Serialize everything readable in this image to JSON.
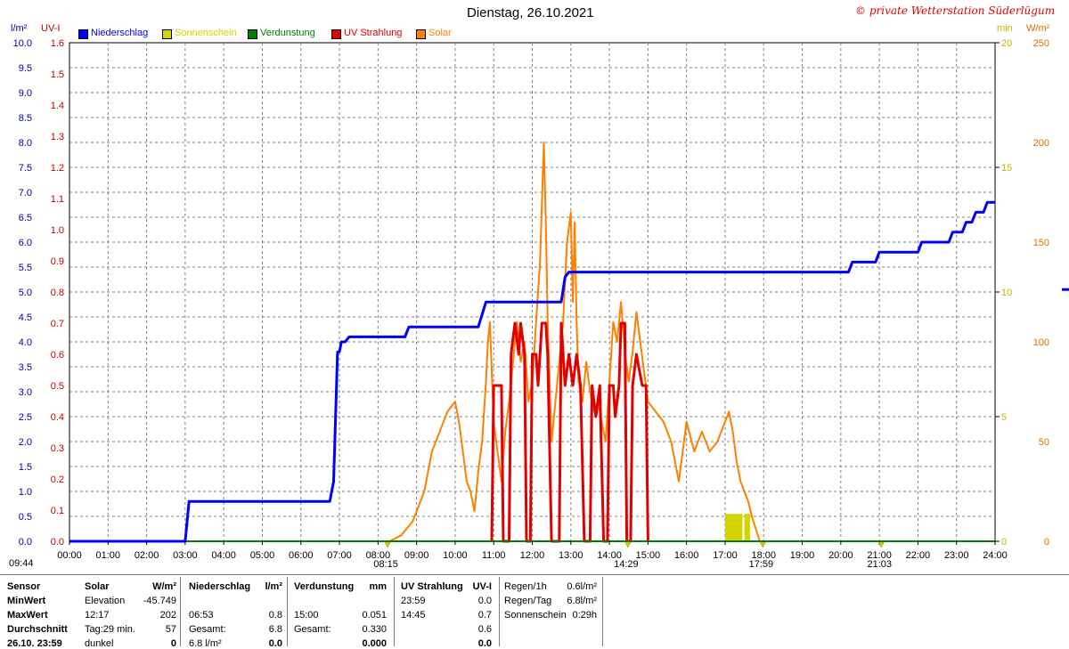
{
  "title": "Dienstag, 26.10.2021",
  "copyright": "© private Wetterstation Süderlügum",
  "colors": {
    "niederschlag": "#0000ff",
    "sonnenschein": "#d4d400",
    "verdunstung": "#007f00",
    "uv": "#e00000",
    "solar": "#ff8000",
    "grid": "#808080"
  },
  "chart_data": {
    "type": "line",
    "axes": {
      "left1": {
        "unit": "l/m²",
        "min": 0,
        "max": 10,
        "ticks": [
          "0.0",
          "0.5",
          "1.0",
          "1.5",
          "2.0",
          "2.5",
          "3.0",
          "3.5",
          "4.0",
          "4.5",
          "5.0",
          "5.5",
          "6.0",
          "6.5",
          "7.0",
          "7.5",
          "8.0",
          "8.5",
          "9.0",
          "9.5",
          "10.0"
        ]
      },
      "left2": {
        "unit": "UV-I",
        "min": 0,
        "max": 1.6,
        "ticks": [
          "0.0",
          "0.1",
          "0.2",
          "0.3",
          "0.4",
          "0.5",
          "0.6",
          "0.7",
          "0.8",
          "0.9",
          "1.0",
          "1.1",
          "1.2",
          "1.3",
          "1.4",
          "1.5",
          "1.6"
        ]
      },
      "right1": {
        "unit": "min",
        "min": 0,
        "max": 20,
        "ticks": [
          "0",
          "5",
          "10",
          "15",
          "20"
        ]
      },
      "right2": {
        "unit": "W/m²",
        "min": 0,
        "max": 250,
        "ticks": [
          "0",
          "50",
          "100",
          "150",
          "200",
          "250"
        ]
      },
      "x": {
        "min": 0,
        "max": 24,
        "ticks": [
          "00:00",
          "01:00",
          "02:00",
          "03:00",
          "04:00",
          "05:00",
          "06:00",
          "07:00",
          "08:00",
          "09:00",
          "10:00",
          "11:00",
          "12:00",
          "13:00",
          "14:00",
          "15:00",
          "16:00",
          "17:00",
          "18:00",
          "19:00",
          "20:00",
          "21:00",
          "22:00",
          "23:00",
          "24:00"
        ]
      }
    },
    "grid": true,
    "legend": [
      "Niederschlag",
      "Sonnenschein",
      "Verdunstung",
      "UV Strahlung",
      "Solar"
    ],
    "series": [
      {
        "name": "Niederschlag",
        "axis": "left1",
        "points": [
          [
            0,
            0
          ],
          [
            3.0,
            0
          ],
          [
            3.1,
            0.8
          ],
          [
            6.75,
            0.8
          ],
          [
            6.85,
            1.2
          ],
          [
            6.95,
            3.8
          ],
          [
            7.0,
            3.8
          ],
          [
            7.05,
            4.0
          ],
          [
            7.15,
            4.0
          ],
          [
            7.25,
            4.1
          ],
          [
            8.7,
            4.1
          ],
          [
            8.8,
            4.3
          ],
          [
            10.6,
            4.3
          ],
          [
            10.8,
            4.8
          ],
          [
            12.75,
            4.8
          ],
          [
            12.85,
            5.3
          ],
          [
            12.95,
            5.4
          ],
          [
            20.2,
            5.4
          ],
          [
            20.3,
            5.6
          ],
          [
            20.9,
            5.6
          ],
          [
            21.0,
            5.8
          ],
          [
            22.0,
            5.8
          ],
          [
            22.1,
            6.0
          ],
          [
            22.8,
            6.0
          ],
          [
            22.9,
            6.2
          ],
          [
            23.15,
            6.2
          ],
          [
            23.25,
            6.4
          ],
          [
            23.4,
            6.4
          ],
          [
            23.5,
            6.6
          ],
          [
            23.7,
            6.6
          ],
          [
            23.8,
            6.8
          ],
          [
            24.0,
            6.8
          ]
        ]
      },
      {
        "name": "Verdunstung",
        "axis": "left1",
        "points": [
          [
            0,
            0
          ],
          [
            24,
            0
          ]
        ]
      },
      {
        "name": "UV Strahlung",
        "axis": "left2",
        "points": [
          [
            10.95,
            0
          ],
          [
            11.0,
            0.5
          ],
          [
            11.2,
            0.5
          ],
          [
            11.25,
            0
          ],
          [
            11.4,
            0
          ],
          [
            11.45,
            0.6
          ],
          [
            11.55,
            0.7
          ],
          [
            11.65,
            0.6
          ],
          [
            11.7,
            0.7
          ],
          [
            11.8,
            0.6
          ],
          [
            11.85,
            0
          ],
          [
            11.95,
            0
          ],
          [
            12.0,
            0.6
          ],
          [
            12.1,
            0.6
          ],
          [
            12.15,
            0.5
          ],
          [
            12.2,
            0.6
          ],
          [
            12.25,
            0.7
          ],
          [
            12.35,
            0.7
          ],
          [
            12.4,
            0.6
          ],
          [
            12.5,
            0
          ],
          [
            12.7,
            0
          ],
          [
            12.75,
            0.7
          ],
          [
            12.85,
            0.5
          ],
          [
            12.95,
            0.6
          ],
          [
            13.05,
            0.5
          ],
          [
            13.15,
            0.6
          ],
          [
            13.25,
            0.5
          ],
          [
            13.35,
            0
          ],
          [
            13.5,
            0
          ],
          [
            13.55,
            0.5
          ],
          [
            13.65,
            0.4
          ],
          [
            13.75,
            0.5
          ],
          [
            13.85,
            0
          ],
          [
            13.95,
            0
          ],
          [
            14.0,
            0.5
          ],
          [
            14.1,
            0.5
          ],
          [
            14.15,
            0.4
          ],
          [
            14.25,
            0.5
          ],
          [
            14.3,
            0.7
          ],
          [
            14.4,
            0.7
          ],
          [
            14.45,
            0
          ],
          [
            14.55,
            0
          ],
          [
            14.6,
            0.5
          ],
          [
            14.7,
            0.6
          ],
          [
            14.85,
            0.5
          ],
          [
            14.95,
            0.5
          ],
          [
            15.0,
            0
          ]
        ]
      },
      {
        "name": "Solar",
        "axis": "right2",
        "points": [
          [
            8.3,
            0
          ],
          [
            8.6,
            3
          ],
          [
            8.9,
            10
          ],
          [
            9.2,
            25
          ],
          [
            9.4,
            45
          ],
          [
            9.6,
            55
          ],
          [
            9.8,
            65
          ],
          [
            10.0,
            70
          ],
          [
            10.1,
            60
          ],
          [
            10.2,
            45
          ],
          [
            10.3,
            30
          ],
          [
            10.4,
            25
          ],
          [
            10.5,
            15
          ],
          [
            10.6,
            35
          ],
          [
            10.7,
            50
          ],
          [
            10.8,
            80
          ],
          [
            10.85,
            100
          ],
          [
            10.9,
            110
          ],
          [
            11.0,
            60
          ],
          [
            11.1,
            45
          ],
          [
            11.2,
            30
          ],
          [
            11.3,
            55
          ],
          [
            11.4,
            70
          ],
          [
            11.5,
            90
          ],
          [
            11.6,
            110
          ],
          [
            11.7,
            90
          ],
          [
            11.8,
            100
          ],
          [
            11.9,
            70
          ],
          [
            12.0,
            80
          ],
          [
            12.1,
            110
          ],
          [
            12.2,
            140
          ],
          [
            12.3,
            200
          ],
          [
            12.35,
            160
          ],
          [
            12.4,
            110
          ],
          [
            12.45,
            80
          ],
          [
            12.5,
            50
          ],
          [
            12.6,
            70
          ],
          [
            12.7,
            90
          ],
          [
            12.8,
            110
          ],
          [
            12.9,
            150
          ],
          [
            13.0,
            165
          ],
          [
            13.05,
            120
          ],
          [
            13.1,
            160
          ],
          [
            13.15,
            110
          ],
          [
            13.2,
            80
          ],
          [
            13.3,
            70
          ],
          [
            13.4,
            90
          ],
          [
            13.5,
            75
          ],
          [
            13.6,
            65
          ],
          [
            13.7,
            70
          ],
          [
            13.8,
            60
          ],
          [
            13.9,
            50
          ],
          [
            14.0,
            80
          ],
          [
            14.1,
            110
          ],
          [
            14.2,
            100
          ],
          [
            14.3,
            120
          ],
          [
            14.4,
            95
          ],
          [
            14.5,
            80
          ],
          [
            14.6,
            95
          ],
          [
            14.7,
            115
          ],
          [
            14.8,
            100
          ],
          [
            14.9,
            85
          ],
          [
            15.0,
            70
          ],
          [
            15.2,
            65
          ],
          [
            15.4,
            60
          ],
          [
            15.6,
            50
          ],
          [
            15.8,
            30
          ],
          [
            16.0,
            60
          ],
          [
            16.2,
            45
          ],
          [
            16.4,
            55
          ],
          [
            16.6,
            45
          ],
          [
            16.8,
            50
          ],
          [
            17.0,
            60
          ],
          [
            17.1,
            65
          ],
          [
            17.2,
            55
          ],
          [
            17.3,
            40
          ],
          [
            17.4,
            30
          ],
          [
            17.5,
            25
          ],
          [
            17.6,
            20
          ],
          [
            17.7,
            12
          ],
          [
            17.8,
            6
          ],
          [
            17.9,
            0
          ]
        ]
      }
    ],
    "sunshine_bars": [
      {
        "from": 17.0,
        "to": 17.45,
        "minutes": 1.1
      },
      {
        "from": 17.5,
        "to": 17.65,
        "minutes": 1.1
      }
    ],
    "markers": [
      {
        "time": 8.25,
        "label": "08:15"
      },
      {
        "time": 14.48,
        "label": "14:29"
      },
      {
        "time": 17.98,
        "label": "17:59"
      },
      {
        "time": 21.05,
        "label": "21:03"
      }
    ]
  },
  "time_left": "09:44",
  "stats": {
    "row_labels": [
      "Sensor",
      "MinWert",
      "MaxWert",
      "Durchschnitt",
      "26.10. 23:59"
    ],
    "solar": {
      "header": "Solar",
      "unit": "W/m²",
      "rows": [
        {
          "a": "Elevation",
          "b": "-45.749"
        },
        {
          "a": "12:17",
          "b": "202"
        },
        {
          "a": "Tag:29 min.",
          "b": "57"
        },
        {
          "a": "dunkel",
          "b": "0"
        }
      ]
    },
    "niederschlag": {
      "header": "Niederschlag",
      "unit": "l/m²",
      "rows": [
        {
          "a": "",
          "b": ""
        },
        {
          "a": "06:53",
          "b": "0.8"
        },
        {
          "a": "Gesamt:",
          "b": "6.8"
        },
        {
          "a": "6.8 l/m²",
          "b": "0.0"
        }
      ]
    },
    "verdunstung": {
      "header": "Verdunstung",
      "unit": "mm",
      "rows": [
        {
          "a": "",
          "b": ""
        },
        {
          "a": "15:00",
          "b": "0.051"
        },
        {
          "a": "Gesamt:",
          "b": "0.330"
        },
        {
          "a": "",
          "b": "0.000"
        }
      ]
    },
    "uv": {
      "header": "UV Strahlung",
      "unit": "UV-I",
      "rows": [
        {
          "a": "23:59",
          "b": "0.0"
        },
        {
          "a": "14:45",
          "b": "0.7"
        },
        {
          "a": "",
          "b": "0.6"
        },
        {
          "a": "",
          "b": "0.0"
        }
      ]
    },
    "regen": {
      "rows": [
        {
          "a": "Regen/1h",
          "b": "0.6l/m²"
        },
        {
          "a": "Regen/Tag",
          "b": "6.8l/m²"
        },
        {
          "a": "Sonnenschein",
          "b": "0:29h"
        }
      ]
    }
  }
}
